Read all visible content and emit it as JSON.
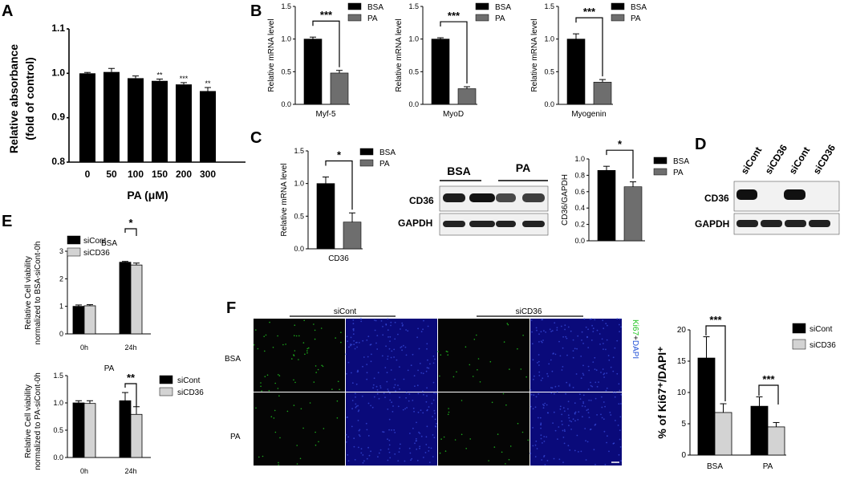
{
  "panels": {
    "A": "A",
    "B": "B",
    "C": "C",
    "D": "D",
    "E": "E",
    "F": "F"
  },
  "colors": {
    "black": "#000000",
    "gray": "#6e6e6e",
    "lightgray": "#d3d3d3",
    "fluor_blue": "#0a0a7a",
    "fluor_green": "#21c421"
  },
  "chart_data": [
    {
      "id": "A",
      "type": "bar",
      "categories": [
        "0",
        "50",
        "100",
        "150",
        "200",
        "300"
      ],
      "values": [
        1.0,
        1.003,
        0.989,
        0.983,
        0.975,
        0.96
      ],
      "errors": [
        0.002,
        0.008,
        0.005,
        0.004,
        0.004,
        0.008
      ],
      "sig": [
        "",
        "",
        "",
        "**",
        "***",
        "**"
      ],
      "xlabel": "PA (μM)",
      "ylabel": "Relative absorbance",
      "ylabel2": "(fold of control)",
      "ylim": [
        0.8,
        1.1
      ],
      "yticks": [
        "0.8",
        "0.9",
        "1.0",
        "1.1"
      ]
    },
    {
      "id": "B1",
      "type": "bar",
      "categories": [
        "BSA",
        "PA"
      ],
      "values": [
        1.0,
        0.48
      ],
      "errors": [
        0.03,
        0.04
      ],
      "xlabel": "Myf-5",
      "ylabel": "Relative mRNA level",
      "ylim": [
        0,
        1.5
      ],
      "yticks": [
        "0.0",
        "0.5",
        "1.0",
        "1.5"
      ],
      "sig": "***",
      "legend": [
        "BSA",
        "PA"
      ]
    },
    {
      "id": "B2",
      "type": "bar",
      "categories": [
        "BSA",
        "PA"
      ],
      "values": [
        1.0,
        0.24
      ],
      "errors": [
        0.02,
        0.03
      ],
      "xlabel": "MyoD",
      "ylabel": "Relative mRNA level",
      "ylim": [
        0,
        1.5
      ],
      "yticks": [
        "0.0",
        "0.5",
        "1.0",
        "1.5"
      ],
      "sig": "***",
      "legend": [
        "BSA",
        "PA"
      ]
    },
    {
      "id": "B3",
      "type": "bar",
      "categories": [
        "BSA",
        "PA"
      ],
      "values": [
        1.0,
        0.34
      ],
      "errors": [
        0.08,
        0.04
      ],
      "xlabel": "Myogenin",
      "ylabel": "Relative mRNA level",
      "ylim": [
        0,
        1.5
      ],
      "yticks": [
        "0.0",
        "0.5",
        "1.0",
        "1.5"
      ],
      "sig": "***",
      "legend": [
        "BSA",
        "PA"
      ]
    },
    {
      "id": "C1",
      "type": "bar",
      "categories": [
        "BSA",
        "PA"
      ],
      "values": [
        1.0,
        0.41
      ],
      "errors": [
        0.1,
        0.14
      ],
      "xlabel": "CD36",
      "ylabel": "Relative mRNA level",
      "ylim": [
        0,
        1.5
      ],
      "yticks": [
        "0.0",
        "0.5",
        "1.0",
        "1.5"
      ],
      "sig": "*",
      "legend": [
        "BSA",
        "PA"
      ]
    },
    {
      "id": "C2",
      "type": "bar",
      "categories": [
        "BSA",
        "PA"
      ],
      "values": [
        0.86,
        0.66
      ],
      "errors": [
        0.05,
        0.06
      ],
      "ylabel": "CD36/GAPDH",
      "ylim": [
        0,
        1.0
      ],
      "yticks": [
        "0.0",
        "0.2",
        "0.4",
        "0.6",
        "0.8",
        "1.0"
      ],
      "sig": "*",
      "legend": [
        "BSA",
        "PA"
      ]
    },
    {
      "id": "E1",
      "type": "bar",
      "title": "BSA",
      "categories": [
        "0h",
        "24h"
      ],
      "series": [
        {
          "name": "siCont",
          "values": [
            1.0,
            2.6
          ],
          "errors": [
            0.05,
            0.03
          ]
        },
        {
          "name": "siCD36",
          "values": [
            1.02,
            2.5
          ],
          "errors": [
            0.04,
            0.07
          ]
        }
      ],
      "ylabel": "Relative Cell viability",
      "ylabel2": "normalized to BSA-siCont-0h",
      "ylim": [
        0,
        3
      ],
      "yticks": [
        "0",
        "1",
        "2",
        "3"
      ],
      "sig": "*"
    },
    {
      "id": "E2",
      "type": "bar",
      "title": "PA",
      "categories": [
        "0h",
        "24h"
      ],
      "series": [
        {
          "name": "siCont",
          "values": [
            1.0,
            1.04
          ],
          "errors": [
            0.04,
            0.15
          ]
        },
        {
          "name": "siCD36",
          "values": [
            0.99,
            0.79
          ],
          "errors": [
            0.05,
            0.14
          ]
        }
      ],
      "ylabel": "Relative Cell viability",
      "ylabel2": "normalized to PA-siCont-0h",
      "ylim": [
        0,
        1.5
      ],
      "yticks": [
        "0.0",
        "0.5",
        "1.0",
        "1.5"
      ],
      "sig": "**"
    },
    {
      "id": "F",
      "type": "bar",
      "categories": [
        "BSA",
        "PA"
      ],
      "series": [
        {
          "name": "siCont",
          "values": [
            15.5,
            7.8
          ],
          "errors": [
            3.4,
            1.5
          ]
        },
        {
          "name": "siCD36",
          "values": [
            6.8,
            4.5
          ],
          "errors": [
            1.4,
            0.7
          ]
        }
      ],
      "ylabel": "% of Ki67⁺/DAPI⁺",
      "ylim": [
        0,
        20
      ],
      "yticks": [
        "0",
        "5",
        "10",
        "15",
        "20"
      ],
      "sig": [
        "***",
        "***"
      ]
    }
  ],
  "blots": {
    "C": {
      "groups": [
        "BSA",
        "PA"
      ],
      "rows": [
        "CD36",
        "GAPDH"
      ]
    },
    "D": {
      "lanes": [
        "siCont",
        "siCD36",
        "siCont",
        "siCD36"
      ],
      "rows": [
        "CD36",
        "GAPDH"
      ]
    }
  },
  "micro": {
    "cols": [
      "siCont",
      "siCD36"
    ],
    "rows": [
      "BSA",
      "PA"
    ],
    "side_label_ki67": "Ki67",
    "side_label_plus": "+",
    "side_label_dapi": "DAPI"
  }
}
